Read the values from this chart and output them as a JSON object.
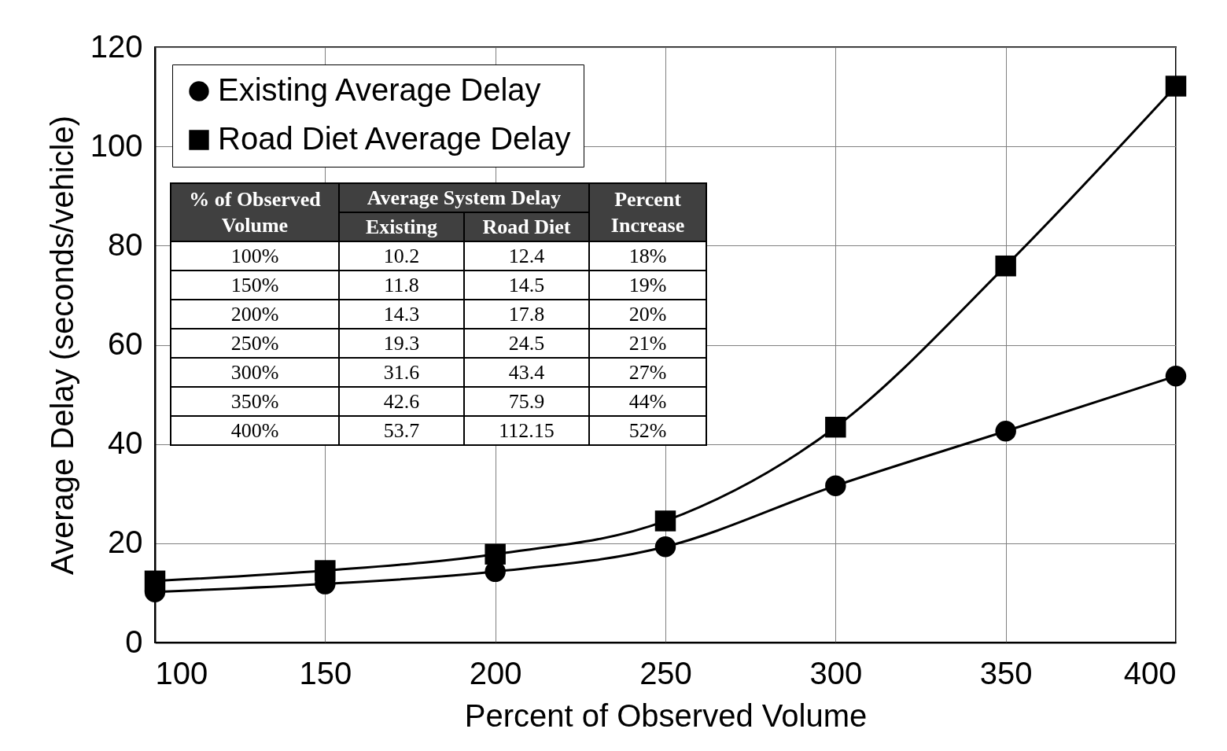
{
  "chart_data": {
    "type": "line",
    "xlabel": "Percent of Observed Volume",
    "ylabel": "Average Delay (seconds/vehicle)",
    "x": [
      100,
      150,
      200,
      250,
      300,
      350,
      400
    ],
    "series": [
      {
        "name": "Existing Average Delay",
        "color": "#000000",
        "marker": "circle",
        "values": [
          10.2,
          11.8,
          14.3,
          19.3,
          31.6,
          42.6,
          53.7
        ]
      },
      {
        "name": "Road Diet Average Delay",
        "color": "#000000",
        "marker": "square",
        "values": [
          12.4,
          14.5,
          17.8,
          24.5,
          43.4,
          75.9,
          112.15
        ]
      }
    ],
    "xlim": [
      100,
      400
    ],
    "xticks": [
      100,
      150,
      200,
      250,
      300,
      350,
      400
    ],
    "ylim": [
      0,
      120
    ],
    "yticks": [
      0,
      20,
      40,
      60,
      80,
      100,
      120
    ],
    "grid": true,
    "legend": "top left",
    "annotations": [
      "% of Observed Volume",
      "Average System Delay",
      "Existing",
      "Road Diet",
      "Percent Increase",
      "100%",
      "10.2",
      "12.4",
      "18%",
      "150%",
      "11.8",
      "14.5",
      "19%",
      "200%",
      "14.3",
      "17.8",
      "20%",
      "250%",
      "19.3",
      "24.5",
      "21%",
      "300%",
      "31.6",
      "43.4",
      "27%",
      "350%",
      "42.6",
      "75.9",
      "44%",
      "400%",
      "53.7",
      "112.15",
      "52%"
    ]
  }
}
